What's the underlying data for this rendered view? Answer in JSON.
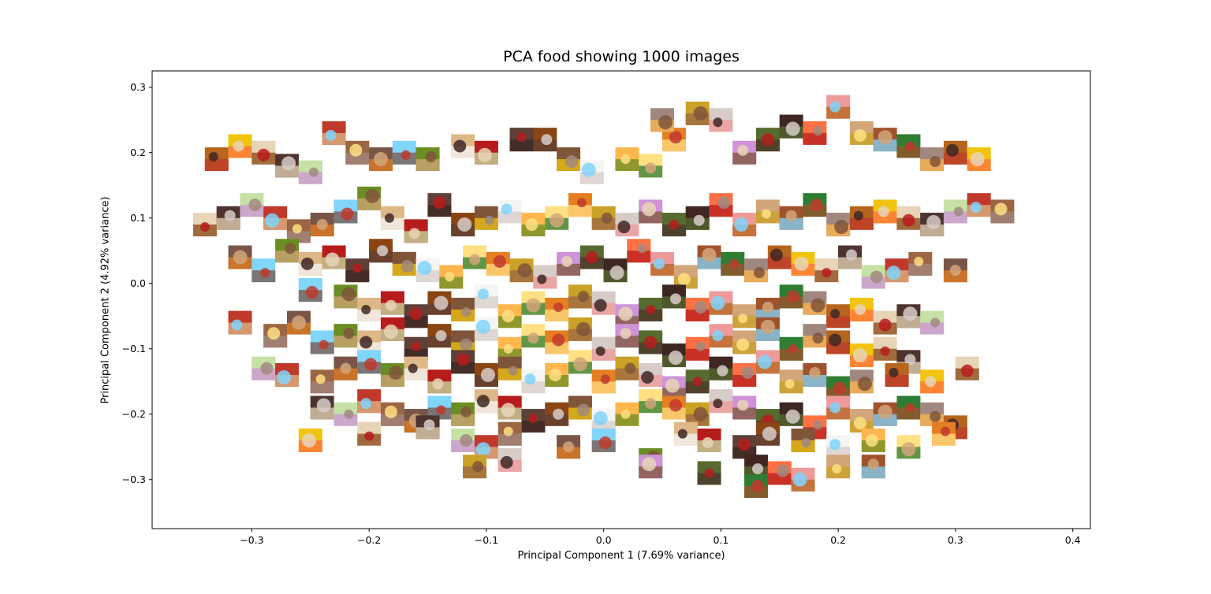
{
  "chart_data": {
    "type": "scatter",
    "title": "PCA food showing 1000 images",
    "xlabel": "Principal Component 1 (7.69% variance)",
    "ylabel": "Principal Component 2 (4.92% variance)",
    "xlim": [
      -0.385,
      0.415
    ],
    "ylim": [
      -0.375,
      0.325
    ],
    "x_ticks": [
      -0.3,
      -0.2,
      -0.1,
      0.0,
      0.1,
      0.2,
      0.3,
      0.4
    ],
    "x_tick_labels": [
      "−0.3",
      "−0.2",
      "−0.1",
      "0.0",
      "0.1",
      "0.2",
      "0.3",
      "0.4"
    ],
    "y_ticks": [
      0.3,
      0.2,
      0.1,
      0.0,
      -0.1,
      -0.2,
      -0.3
    ],
    "y_tick_labels": [
      "0.3",
      "0.2",
      "0.1",
      "0.0",
      "−0.1",
      "−0.2",
      "−0.3"
    ],
    "grid": false,
    "marker": "image thumbnails",
    "point_count": 1000,
    "points_note": "Representative sample of thumbnail centres read from the plot (x, y in PC units).",
    "points": [
      [
        -0.33,
        0.19
      ],
      [
        -0.31,
        0.21
      ],
      [
        -0.29,
        0.2
      ],
      [
        -0.27,
        0.18
      ],
      [
        -0.25,
        0.17
      ],
      [
        -0.23,
        0.23
      ],
      [
        -0.21,
        0.2
      ],
      [
        -0.19,
        0.19
      ],
      [
        -0.17,
        0.2
      ],
      [
        -0.15,
        0.19
      ],
      [
        -0.12,
        0.21
      ],
      [
        -0.1,
        0.2
      ],
      [
        -0.07,
        0.22
      ],
      [
        -0.05,
        0.22
      ],
      [
        -0.03,
        0.19
      ],
      [
        -0.01,
        0.17
      ],
      [
        0.02,
        0.19
      ],
      [
        0.04,
        0.18
      ],
      [
        0.06,
        0.22
      ],
      [
        0.08,
        0.26
      ],
      [
        0.1,
        0.25
      ],
      [
        0.12,
        0.2
      ],
      [
        0.14,
        0.22
      ],
      [
        0.16,
        0.24
      ],
      [
        0.18,
        0.23
      ],
      [
        0.2,
        0.27
      ],
      [
        0.22,
        0.23
      ],
      [
        0.24,
        0.22
      ],
      [
        0.26,
        0.21
      ],
      [
        0.28,
        0.19
      ],
      [
        0.3,
        0.2
      ],
      [
        0.32,
        0.19
      ],
      [
        -0.34,
        0.09
      ],
      [
        -0.32,
        0.1
      ],
      [
        -0.3,
        0.12
      ],
      [
        -0.28,
        0.1
      ],
      [
        -0.26,
        0.08
      ],
      [
        -0.24,
        0.09
      ],
      [
        -0.22,
        0.11
      ],
      [
        -0.2,
        0.13
      ],
      [
        -0.18,
        0.1
      ],
      [
        -0.16,
        0.08
      ],
      [
        -0.14,
        0.12
      ],
      [
        -0.12,
        0.09
      ],
      [
        -0.1,
        0.1
      ],
      [
        -0.08,
        0.11
      ],
      [
        -0.06,
        0.09
      ],
      [
        -0.04,
        0.1
      ],
      [
        -0.02,
        0.12
      ],
      [
        0.0,
        0.1
      ],
      [
        0.02,
        0.09
      ],
      [
        0.04,
        0.11
      ],
      [
        0.06,
        0.09
      ],
      [
        0.08,
        0.1
      ],
      [
        0.1,
        0.12
      ],
      [
        0.12,
        0.09
      ],
      [
        0.14,
        0.11
      ],
      [
        0.16,
        0.1
      ],
      [
        0.18,
        0.12
      ],
      [
        0.2,
        0.09
      ],
      [
        0.22,
        0.1
      ],
      [
        0.24,
        0.11
      ],
      [
        0.26,
        0.1
      ],
      [
        0.28,
        0.09
      ],
      [
        0.3,
        0.11
      ],
      [
        0.32,
        0.12
      ],
      [
        0.34,
        0.11
      ],
      [
        -0.31,
        0.04
      ],
      [
        -0.29,
        0.02
      ],
      [
        -0.27,
        0.05
      ],
      [
        -0.25,
        0.03
      ],
      [
        -0.23,
        0.04
      ],
      [
        -0.21,
        0.02
      ],
      [
        -0.19,
        0.05
      ],
      [
        -0.17,
        0.03
      ],
      [
        -0.15,
        0.02
      ],
      [
        -0.13,
        0.01
      ],
      [
        -0.11,
        0.04
      ],
      [
        -0.09,
        0.03
      ],
      [
        -0.07,
        0.02
      ],
      [
        -0.05,
        0.01
      ],
      [
        -0.03,
        0.03
      ],
      [
        -0.01,
        0.04
      ],
      [
        0.01,
        0.02
      ],
      [
        0.03,
        0.05
      ],
      [
        0.05,
        0.03
      ],
      [
        0.07,
        0.01
      ],
      [
        0.09,
        0.04
      ],
      [
        0.11,
        0.03
      ],
      [
        0.13,
        0.02
      ],
      [
        0.15,
        0.04
      ],
      [
        0.17,
        0.03
      ],
      [
        0.19,
        0.02
      ],
      [
        0.21,
        0.04
      ],
      [
        0.23,
        0.01
      ],
      [
        0.25,
        0.02
      ],
      [
        0.27,
        0.03
      ],
      [
        0.3,
        0.02
      ],
      [
        -0.25,
        -0.01
      ],
      [
        -0.22,
        -0.02
      ],
      [
        -0.2,
        -0.04
      ],
      [
        -0.18,
        -0.03
      ],
      [
        -0.16,
        -0.05
      ],
      [
        -0.14,
        -0.03
      ],
      [
        -0.12,
        -0.04
      ],
      [
        -0.1,
        -0.02
      ],
      [
        -0.08,
        -0.05
      ],
      [
        -0.06,
        -0.03
      ],
      [
        -0.04,
        -0.04
      ],
      [
        -0.02,
        -0.02
      ],
      [
        0.0,
        -0.03
      ],
      [
        0.02,
        -0.05
      ],
      [
        0.04,
        -0.04
      ],
      [
        0.06,
        -0.02
      ],
      [
        0.08,
        -0.04
      ],
      [
        0.1,
        -0.03
      ],
      [
        0.12,
        -0.05
      ],
      [
        0.14,
        -0.04
      ],
      [
        0.16,
        -0.02
      ],
      [
        0.18,
        -0.03
      ],
      [
        0.2,
        -0.05
      ],
      [
        0.22,
        -0.04
      ],
      [
        0.24,
        -0.06
      ],
      [
        0.26,
        -0.05
      ],
      [
        0.28,
        -0.06
      ],
      [
        -0.31,
        -0.06
      ],
      [
        -0.28,
        -0.08
      ],
      [
        -0.26,
        -0.06
      ],
      [
        -0.24,
        -0.09
      ],
      [
        -0.22,
        -0.08
      ],
      [
        -0.2,
        -0.09
      ],
      [
        -0.18,
        -0.07
      ],
      [
        -0.16,
        -0.1
      ],
      [
        -0.14,
        -0.08
      ],
      [
        -0.12,
        -0.09
      ],
      [
        -0.1,
        -0.07
      ],
      [
        -0.08,
        -0.1
      ],
      [
        -0.06,
        -0.08
      ],
      [
        -0.04,
        -0.09
      ],
      [
        -0.02,
        -0.07
      ],
      [
        0.0,
        -0.1
      ],
      [
        0.02,
        -0.08
      ],
      [
        0.04,
        -0.09
      ],
      [
        0.06,
        -0.11
      ],
      [
        0.08,
        -0.1
      ],
      [
        0.1,
        -0.08
      ],
      [
        0.12,
        -0.09
      ],
      [
        0.14,
        -0.07
      ],
      [
        0.16,
        -0.1
      ],
      [
        0.18,
        -0.08
      ],
      [
        0.2,
        -0.09
      ],
      [
        0.22,
        -0.11
      ],
      [
        0.24,
        -0.1
      ],
      [
        0.26,
        -0.12
      ],
      [
        -0.29,
        -0.13
      ],
      [
        -0.27,
        -0.14
      ],
      [
        -0.24,
        -0.15
      ],
      [
        -0.22,
        -0.13
      ],
      [
        -0.2,
        -0.12
      ],
      [
        -0.18,
        -0.14
      ],
      [
        -0.16,
        -0.13
      ],
      [
        -0.14,
        -0.15
      ],
      [
        -0.12,
        -0.12
      ],
      [
        -0.1,
        -0.14
      ],
      [
        -0.08,
        -0.13
      ],
      [
        -0.06,
        -0.15
      ],
      [
        -0.04,
        -0.14
      ],
      [
        -0.02,
        -0.12
      ],
      [
        0.0,
        -0.15
      ],
      [
        0.02,
        -0.13
      ],
      [
        0.04,
        -0.14
      ],
      [
        0.06,
        -0.16
      ],
      [
        0.08,
        -0.15
      ],
      [
        0.1,
        -0.13
      ],
      [
        0.12,
        -0.14
      ],
      [
        0.14,
        -0.12
      ],
      [
        0.16,
        -0.15
      ],
      [
        0.18,
        -0.14
      ],
      [
        0.2,
        -0.16
      ],
      [
        0.22,
        -0.15
      ],
      [
        0.25,
        -0.14
      ],
      [
        0.28,
        -0.15
      ],
      [
        0.31,
        -0.13
      ],
      [
        -0.24,
        -0.19
      ],
      [
        -0.22,
        -0.2
      ],
      [
        -0.2,
        -0.18
      ],
      [
        -0.18,
        -0.2
      ],
      [
        -0.16,
        -0.21
      ],
      [
        -0.14,
        -0.19
      ],
      [
        -0.12,
        -0.2
      ],
      [
        -0.1,
        -0.18
      ],
      [
        -0.08,
        -0.19
      ],
      [
        -0.06,
        -0.21
      ],
      [
        -0.04,
        -0.2
      ],
      [
        -0.02,
        -0.19
      ],
      [
        0.0,
        -0.21
      ],
      [
        0.02,
        -0.2
      ],
      [
        0.04,
        -0.18
      ],
      [
        0.06,
        -0.19
      ],
      [
        0.08,
        -0.2
      ],
      [
        0.1,
        -0.18
      ],
      [
        0.12,
        -0.19
      ],
      [
        0.14,
        -0.21
      ],
      [
        0.16,
        -0.2
      ],
      [
        0.18,
        -0.22
      ],
      [
        0.2,
        -0.19
      ],
      [
        0.22,
        -0.21
      ],
      [
        0.24,
        -0.2
      ],
      [
        0.26,
        -0.19
      ],
      [
        0.28,
        -0.2
      ],
      [
        0.3,
        -0.22
      ],
      [
        -0.25,
        -0.24
      ],
      [
        -0.2,
        -0.23
      ],
      [
        -0.15,
        -0.22
      ],
      [
        -0.12,
        -0.24
      ],
      [
        -0.1,
        -0.25
      ],
      [
        -0.08,
        -0.23
      ],
      [
        -0.03,
        -0.25
      ],
      [
        0.0,
        -0.24
      ],
      [
        0.04,
        -0.27
      ],
      [
        0.07,
        -0.23
      ],
      [
        0.09,
        -0.24
      ],
      [
        0.12,
        -0.25
      ],
      [
        0.14,
        -0.23
      ],
      [
        0.17,
        -0.24
      ],
      [
        0.2,
        -0.25
      ],
      [
        0.23,
        -0.24
      ],
      [
        0.26,
        -0.25
      ],
      [
        0.29,
        -0.23
      ],
      [
        -0.11,
        -0.28
      ],
      [
        -0.08,
        -0.27
      ],
      [
        0.04,
        -0.28
      ],
      [
        0.09,
        -0.29
      ],
      [
        0.13,
        -0.28
      ],
      [
        0.15,
        -0.29
      ],
      [
        0.17,
        -0.3
      ],
      [
        0.2,
        -0.28
      ],
      [
        0.23,
        -0.28
      ],
      [
        0.13,
        -0.31
      ],
      [
        0.05,
        0.25
      ]
    ],
    "thumbnail_colors": [
      "#b5651d",
      "#8b4513",
      "#d2a679",
      "#6b8e23",
      "#556b2f",
      "#c0392b",
      "#e67e22",
      "#f1c40f",
      "#7f5539",
      "#a0522d",
      "#deb887",
      "#3e2723",
      "#9c6644",
      "#c9a227",
      "#e8d5b7",
      "#f5f5f5",
      "#2e7d32",
      "#b71c1c",
      "#ff7043",
      "#795548",
      "#d7ccc8",
      "#4e342e",
      "#ffb74d",
      "#a1887f",
      "#5d4037",
      "#ef9a9a",
      "#81d4fa",
      "#ce93d8",
      "#c5e1a5",
      "#ffe082"
    ]
  }
}
